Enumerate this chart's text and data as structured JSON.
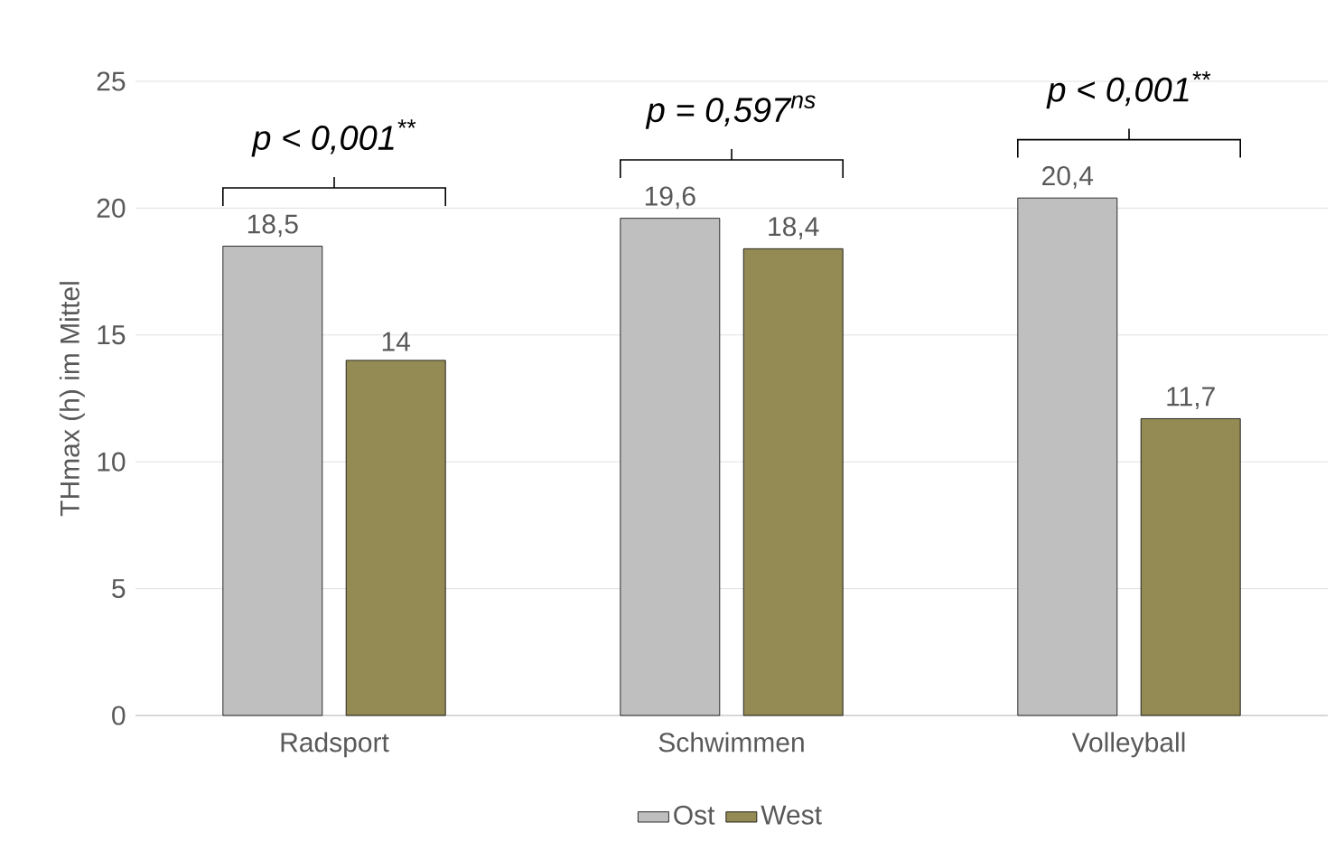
{
  "chart_data": {
    "type": "bar",
    "ylabel": "THmax (h) im Mittel",
    "categories": [
      "Radsport",
      "Schwimmen",
      "Volleyball"
    ],
    "series": [
      {
        "name": "Ost",
        "color": "#bfbfbf",
        "values": [
          18.5,
          19.6,
          20.4
        ],
        "value_labels": [
          "18,5",
          "19,6",
          "20,4"
        ]
      },
      {
        "name": "West",
        "color": "#948a54",
        "values": [
          14,
          18.4,
          11.7
        ],
        "value_labels": [
          "14",
          "18,4",
          "11,7"
        ]
      }
    ],
    "ylim": [
      0,
      25
    ],
    "yticks": [
      0,
      5,
      10,
      15,
      20,
      25
    ],
    "grid": "y",
    "legend": "bottom",
    "annotations": [
      "*p* < 0,001$^{**}$",
      "*p* = 0,597$^{ns}$",
      "*p* < 0,001$^{**}$"
    ]
  }
}
